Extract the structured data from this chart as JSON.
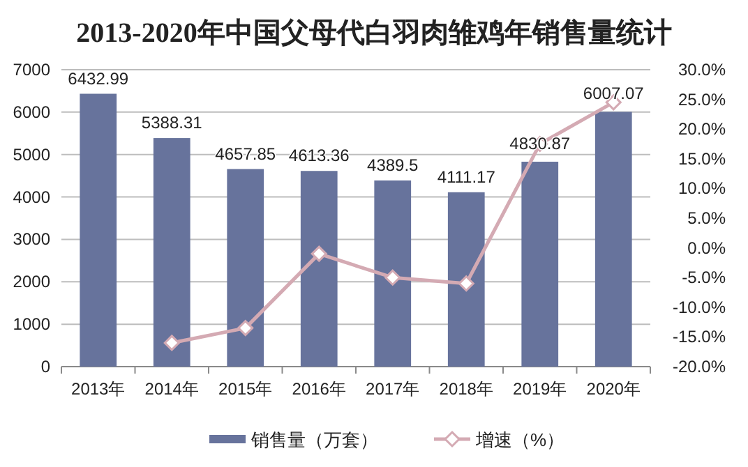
{
  "chart_data": {
    "type": "bar",
    "title": "2013-2020年中国父母代白羽肉雏鸡年销售量统计",
    "categories": [
      "2013年",
      "2014年",
      "2015年",
      "2016年",
      "2017年",
      "2018年",
      "2019年",
      "2020年"
    ],
    "series": [
      {
        "name": "销售量（万套）",
        "color": "#67739c",
        "values": [
          6432.99,
          5388.31,
          4657.85,
          4613.36,
          4389.5,
          4111.17,
          4830.87,
          6007.07
        ],
        "value_labels": [
          "6432.99",
          "5388.31",
          "4657.85",
          "4613.36",
          "4389.5",
          "4111.17",
          "4830.87",
          "6007.07"
        ]
      },
      {
        "name": "增速（%）",
        "type": "line",
        "axis": "y2",
        "color": "#d4aab3",
        "marker": "diamond",
        "values": [
          null,
          -16,
          -13.5,
          -1,
          -5,
          -6,
          17.5,
          24.5
        ]
      }
    ],
    "ylim": [
      0,
      7000
    ],
    "yticks": [
      0,
      1000,
      2000,
      3000,
      4000,
      5000,
      6000,
      7000
    ],
    "y2lim": [
      -20,
      30
    ],
    "y2ticks": [
      {
        "value": -20,
        "label": "-20.0%"
      },
      {
        "value": -15,
        "label": "-15.0%"
      },
      {
        "value": -10,
        "label": "-10.0%"
      },
      {
        "value": -5,
        "label": "-5.0%"
      },
      {
        "value": 0,
        "label": "0.0%"
      },
      {
        "value": 5,
        "label": "5.0%"
      },
      {
        "value": 10,
        "label": "10.0%"
      },
      {
        "value": 15,
        "label": "15.0%"
      },
      {
        "value": 20,
        "label": "20.0%"
      },
      {
        "value": 25,
        "label": "25.0%"
      },
      {
        "value": 30,
        "label": "30.0%"
      }
    ],
    "grid": "y",
    "legend": "bottom"
  }
}
